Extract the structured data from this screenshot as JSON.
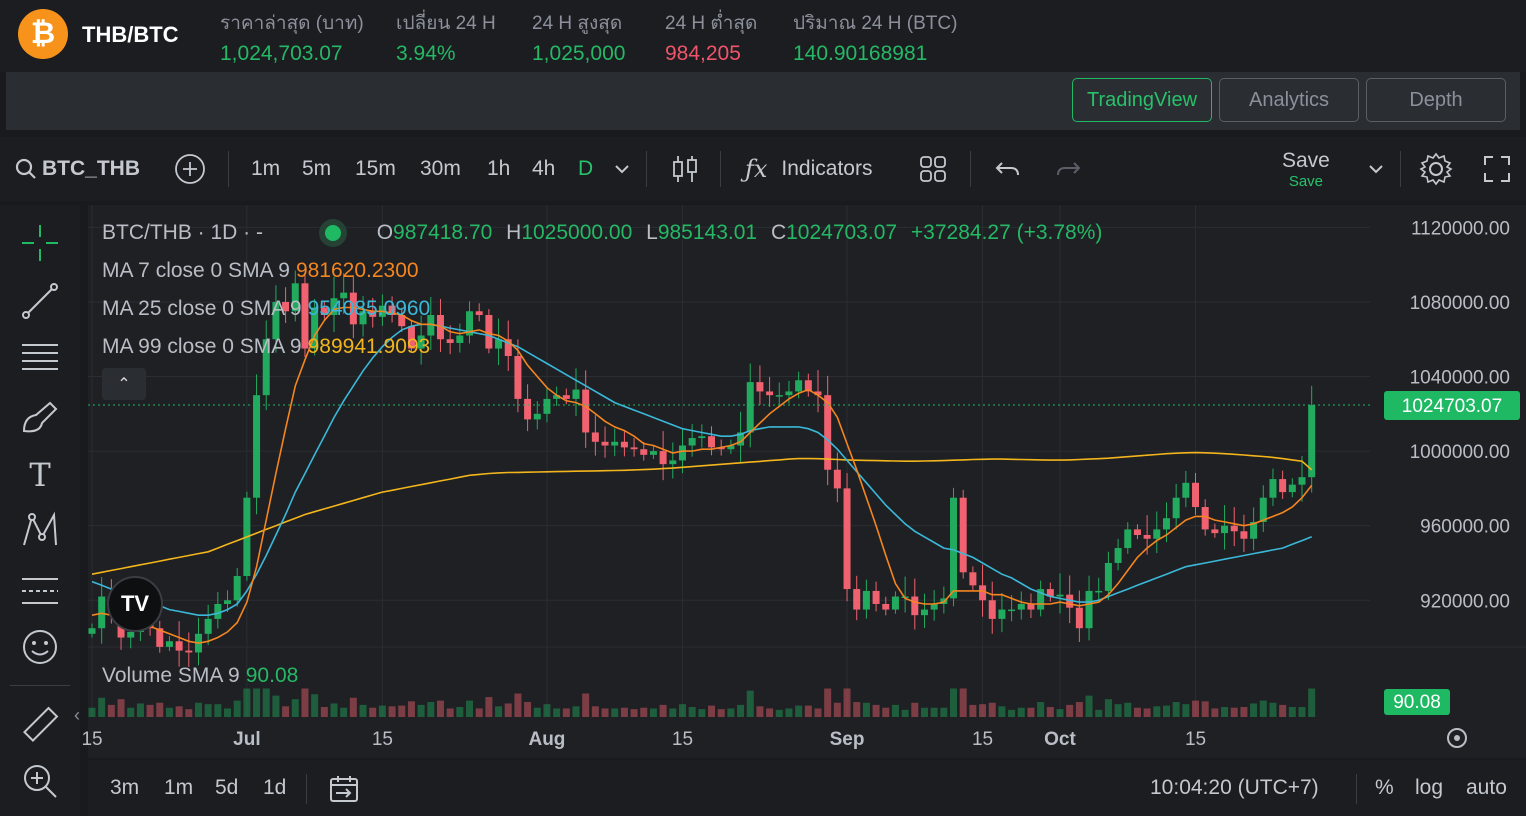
{
  "header": {
    "pair": "THB/BTC",
    "stats": [
      {
        "label": "ราคาล่าสุด (บาท)",
        "value": "1,024,703.07",
        "tone": "up"
      },
      {
        "label": "เปลี่ยน 24 H",
        "value": "3.94%",
        "tone": "up"
      },
      {
        "label": "24 H สูงสุด",
        "value": "1,025,000",
        "tone": "up"
      },
      {
        "label": "24 H ต่ำสุด",
        "value": "984,205",
        "tone": "down"
      },
      {
        "label": "ปริมาณ 24 H (BTC)",
        "value": "140.90168981",
        "tone": "up"
      }
    ]
  },
  "tabs": [
    "TradingView",
    "Analytics",
    "Depth"
  ],
  "toolbar": {
    "symbol": "BTC_THB",
    "intervals": [
      "1m",
      "5m",
      "15m",
      "30m",
      "1h",
      "4h",
      "D"
    ],
    "indicators_label": "Indicators",
    "save_label": "Save",
    "save_sub": "Save"
  },
  "legend": {
    "title": "BTC/THB · 1D · -",
    "o_label": "O",
    "o": "987418.70",
    "h_label": "H",
    "h": "1025000.00",
    "l_label": "L",
    "l": "985143.01",
    "c_label": "C",
    "c": "1024703.07",
    "chg": "+37284.27 (+3.78%)",
    "ma7_label": "MA 7 close 0 SMA 9",
    "ma7": "981620.2300",
    "ma25_label": "MA 25 close 0 SMA 9",
    "ma25": "954085.0960",
    "ma99_label": "MA 99 close 0 SMA 9",
    "ma99": "989941.9093",
    "vol_label": "Volume SMA 9",
    "vol": "90.08"
  },
  "bottom": {
    "ranges": [
      "3m",
      "1m",
      "5d",
      "1d"
    ],
    "clock": "10:04:20 (UTC+7)",
    "pct": "%",
    "log": "log",
    "auto": "auto"
  },
  "colors": {
    "up": "#22ab5e",
    "down": "#f0626f",
    "ma7": "#f5851f",
    "ma25": "#3bb8d8",
    "ma99": "#f3b51c",
    "accent": "#1fb964"
  },
  "chart_data": {
    "type": "candlestick",
    "symbol": "BTC/THB",
    "interval": "1D",
    "ylim": [
      896000,
      1132000
    ],
    "y_ticks": [
      "1120000.00",
      "1080000.00",
      "1040000.00",
      "1000000.00",
      "960000.00",
      "920000.00"
    ],
    "y_tick_values": [
      1120000,
      1080000,
      1040000,
      1000000,
      960000,
      920000
    ],
    "x_ticks": [
      "15",
      "Jul",
      "15",
      "Aug",
      "15",
      "Sep",
      "15",
      "Oct",
      "15"
    ],
    "x_tick_days": [
      0,
      16,
      30,
      47,
      61,
      78,
      92,
      100,
      114
    ],
    "x_tick_note": "day offset from Jun 15",
    "last_price": "1024703.07",
    "last_volume": "90.08",
    "closes": [
      905000,
      922000,
      915000,
      900000,
      903000,
      912000,
      905000,
      895000,
      898000,
      893000,
      892000,
      902000,
      910000,
      918000,
      920000,
      933000,
      975000,
      1030000,
      1060000,
      1080000,
      1075000,
      1090000,
      1055000,
      1077000,
      1073000,
      1082000,
      1085000,
      1068000,
      1075000,
      1072000,
      1078000,
      1073000,
      1067000,
      1055000,
      1062000,
      1073000,
      1060000,
      1058000,
      1062000,
      1075000,
      1073000,
      1055000,
      1060000,
      1051000,
      1028000,
      1017000,
      1020000,
      1028000,
      1030000,
      1028000,
      1033000,
      1010000,
      1005000,
      1003000,
      1005000,
      1002000,
      1001000,
      998000,
      1000000,
      993000,
      995000,
      1003000,
      1007000,
      1008000,
      1002000,
      1001000,
      1003000,
      1010000,
      1037000,
      1032000,
      1030000,
      1030000,
      1032000,
      1038000,
      1032000,
      1030000,
      990000,
      980000,
      926000,
      915000,
      925000,
      918000,
      915000,
      922000,
      922000,
      912000,
      915000,
      918000,
      921000,
      975000,
      935000,
      928000,
      920000,
      910000,
      915000,
      915000,
      918000,
      915000,
      926000,
      922000,
      923000,
      916000,
      905000,
      925000,
      925000,
      940000,
      948000,
      958000,
      955000,
      953000,
      958000,
      964000,
      975000,
      983000,
      970000,
      958000,
      956000,
      960000,
      957000,
      953000,
      962000,
      975000,
      985000,
      978000,
      982000,
      986000,
      1024703
    ],
    "ma7": [
      912000,
      913000,
      912000,
      910000,
      909000,
      908000,
      906000,
      904000,
      902000,
      900000,
      898000,
      897000,
      898000,
      900000,
      903000,
      908000,
      919000,
      938000,
      963000,
      988000,
      1012000,
      1035000,
      1049000,
      1062000,
      1070000,
      1076000,
      1077000,
      1077000,
      1076000,
      1075000,
      1075000,
      1074000,
      1073000,
      1070000,
      1068000,
      1068000,
      1067000,
      1064000,
      1063000,
      1064000,
      1065000,
      1063000,
      1062000,
      1059000,
      1054000,
      1046000,
      1040000,
      1034000,
      1030000,
      1027000,
      1026000,
      1024000,
      1020000,
      1016000,
      1013000,
      1011000,
      1008000,
      1004000,
      1003000,
      1001000,
      999000,
      1000000,
      1000000,
      1001000,
      1001000,
      1002000,
      1003000,
      1005000,
      1010000,
      1015000,
      1020000,
      1024000,
      1028000,
      1031000,
      1033000,
      1030000,
      1026000,
      1018000,
      1004000,
      990000,
      975000,
      960000,
      944000,
      929000,
      921000,
      919000,
      918000,
      918000,
      919000,
      925000,
      925000,
      925000,
      925000,
      923000,
      923000,
      921000,
      919000,
      918000,
      918000,
      918000,
      919000,
      918000,
      917000,
      918000,
      919000,
      923000,
      929000,
      936000,
      943000,
      948000,
      952000,
      955000,
      959000,
      963000,
      965000,
      965000,
      963000,
      962000,
      961000,
      960000,
      961000,
      963000,
      965000,
      967000,
      970000,
      975000,
      981620
    ],
    "ma25": [
      930000,
      928000,
      926000,
      924000,
      922000,
      920000,
      918000,
      917000,
      915000,
      914000,
      913000,
      912000,
      912000,
      913000,
      915000,
      918000,
      925000,
      934000,
      944000,
      955000,
      966000,
      978000,
      988000,
      998000,
      1008000,
      1018000,
      1027000,
      1035000,
      1043000,
      1050000,
      1056000,
      1061000,
      1065000,
      1067000,
      1068000,
      1068000,
      1067000,
      1066000,
      1065000,
      1064000,
      1063000,
      1062000,
      1060000,
      1058000,
      1056000,
      1053000,
      1050000,
      1047000,
      1044000,
      1041000,
      1038000,
      1035000,
      1032000,
      1029000,
      1026000,
      1024000,
      1022000,
      1020000,
      1018000,
      1016000,
      1014000,
      1012000,
      1011000,
      1010000,
      1009000,
      1008000,
      1008000,
      1009000,
      1011000,
      1012000,
      1013000,
      1013000,
      1013000,
      1013000,
      1012000,
      1010000,
      1006000,
      1001000,
      995000,
      989000,
      983000,
      977000,
      971000,
      966000,
      961000,
      957000,
      954000,
      951000,
      948000,
      947000,
      945000,
      943000,
      940000,
      937000,
      934000,
      932000,
      929000,
      926000,
      924000,
      922000,
      921000,
      920000,
      919000,
      919000,
      920000,
      922000,
      924000,
      926000,
      928000,
      930000,
      932000,
      934000,
      936000,
      938000,
      939000,
      940000,
      941000,
      942000,
      943000,
      944000,
      945000,
      946000,
      947000,
      948000,
      950000,
      952000,
      954085
    ],
    "ma99": [
      934000,
      935000,
      936000,
      937000,
      938000,
      939000,
      940000,
      941000,
      942000,
      943000,
      944000,
      945000,
      946000,
      948000,
      950000,
      952000,
      954000,
      956000,
      958000,
      960000,
      962000,
      964000,
      966000,
      967500,
      969000,
      970500,
      972000,
      973500,
      975000,
      976500,
      978000,
      979000,
      980000,
      981000,
      982000,
      983000,
      984000,
      985000,
      986000,
      987000,
      987500,
      988000,
      988300,
      988500,
      988600,
      988700,
      988800,
      988900,
      989000,
      989100,
      989200,
      989300,
      989400,
      989500,
      989600,
      989700,
      989900,
      990100,
      990300,
      990600,
      990900,
      991300,
      991700,
      992100,
      992500,
      992900,
      993300,
      993700,
      994100,
      994500,
      994900,
      995300,
      995700,
      996000,
      996000,
      995900,
      995700,
      995500,
      995300,
      995100,
      995000,
      994900,
      994800,
      994700,
      994600,
      994600,
      994700,
      994800,
      994900,
      995100,
      995300,
      995500,
      995600,
      995700,
      995700,
      995600,
      995500,
      995400,
      995300,
      995200,
      995200,
      995300,
      995500,
      995700,
      995900,
      996200,
      996600,
      997000,
      997400,
      997800,
      998200,
      998600,
      998900,
      999100,
      999200,
      999100,
      998900,
      998600,
      998300,
      997900,
      997500,
      997100,
      996600,
      996000,
      995300,
      994600,
      989942
    ]
  }
}
